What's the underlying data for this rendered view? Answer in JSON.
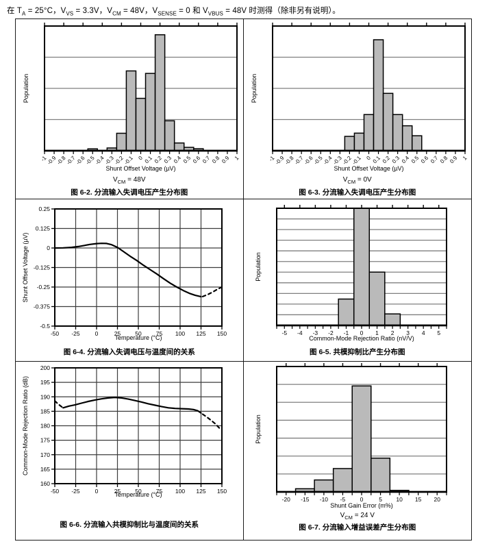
{
  "header": {
    "segments": [
      {
        "t": "在 T"
      },
      {
        "s": "A"
      },
      {
        "t": " = 25°C，V"
      },
      {
        "s": "VS"
      },
      {
        "t": " = 3.3V，V"
      },
      {
        "s": "CM"
      },
      {
        "t": " = 48V，V"
      },
      {
        "s": "SENSE"
      },
      {
        "t": " = 0 和 V"
      },
      {
        "s": "VBUS"
      },
      {
        "t": " = 48V 时测得（除非另有说明）。"
      }
    ]
  },
  "colors": {
    "bar_fill": "#bababa",
    "bar_stroke": "#000000",
    "hist_grid": "#7f7f7f",
    "line_grid": "#3c3c3c",
    "frame": "#000000"
  },
  "chart_data": [
    {
      "type": "bar",
      "subtype": "histogram",
      "caption": "图 6-2. 分流输入失调电压产生分布图",
      "subtitle": {
        "pre": "V",
        "sub": "CM",
        "post": " = 48V"
      },
      "xlabel": "Shunt Offset Voltage (µV)",
      "ylabel": "Population",
      "xlim": [
        -1,
        1
      ],
      "tick_labels": [
        "-1",
        "-0.9",
        "-0.8",
        "-0.7",
        "-0.6",
        "-0.5",
        "-0.4",
        "-0.3",
        "-0.2",
        "-0.1",
        "0",
        "0.1",
        "0.2",
        "0.3",
        "0.4",
        "0.5",
        "0.6",
        "0.7",
        "0.8",
        "0.9",
        "1"
      ],
      "rotate_labels": true,
      "minor_step": 0.1,
      "top_every": 2,
      "rows": 4,
      "bin_width": 0.1,
      "bars": [
        [
          -0.5,
          0.015
        ],
        [
          -0.3,
          0.022
        ],
        [
          -0.2,
          0.14
        ],
        [
          -0.1,
          0.64
        ],
        [
          0,
          0.42
        ],
        [
          0.1,
          0.62
        ],
        [
          0.2,
          0.93
        ],
        [
          0.3,
          0.24
        ],
        [
          0.4,
          0.062
        ],
        [
          0.5,
          0.027
        ],
        [
          0.6,
          0.016
        ]
      ]
    },
    {
      "type": "bar",
      "subtype": "histogram",
      "caption": "图 6-3. 分流输入失调电压产生分布图",
      "subtitle": {
        "pre": "V",
        "sub": "CM",
        "post": " = 0V"
      },
      "xlabel": "Shunt Offset Voltage (µV)",
      "ylabel": "Population",
      "xlim": [
        -1,
        1
      ],
      "tick_labels": [
        "-1",
        "-0.9",
        "-0.8",
        "-0.7",
        "-0.6",
        "-0.5",
        "-0.4",
        "-0.3",
        "-0.2",
        "-0.1",
        "0",
        "0.1",
        "0.2",
        "0.3",
        "0.4",
        "0.5",
        "0.6",
        "0.7",
        "0.8",
        "0.9",
        "1"
      ],
      "rotate_labels": true,
      "minor_step": 0.1,
      "top_every": 2,
      "rows": 4,
      "bin_width": 0.1,
      "bars": [
        [
          -0.2,
          0.115
        ],
        [
          -0.1,
          0.141
        ],
        [
          0,
          0.29
        ],
        [
          0.1,
          0.89
        ],
        [
          0.2,
          0.46
        ],
        [
          0.3,
          0.29
        ],
        [
          0.4,
          0.2
        ],
        [
          0.5,
          0.12
        ]
      ]
    },
    {
      "type": "line",
      "caption": "图 6-4. 分流输入失调电压与温度间的关系",
      "subtitle": null,
      "xlabel": "Temperature (°C)",
      "ylabel": "Shunt Offset Voltage (µV)",
      "xlim": [
        -50,
        150
      ],
      "ylim": [
        -0.5,
        0.25
      ],
      "xticks": [
        -50,
        -25,
        0,
        25,
        50,
        75,
        100,
        125,
        150
      ],
      "yticks": [
        0.25,
        0.125,
        0,
        -0.125,
        -0.25,
        -0.375,
        -0.5
      ],
      "ytick_labels": [
        "0.25",
        "0.125",
        "0",
        "-0.125",
        "-0.25",
        "-0.375",
        "-0.5"
      ],
      "segments": [
        {
          "style": "solid",
          "points": [
            [
              -50,
              0
            ],
            [
              -40,
              0.001
            ],
            [
              -30,
              0.004
            ],
            [
              -22,
              0.009
            ],
            [
              -15,
              0.016
            ],
            [
              -8,
              0.023
            ],
            [
              0,
              0.028
            ],
            [
              6,
              0.03
            ],
            [
              12,
              0.029
            ],
            [
              18,
              0.021
            ],
            [
              25,
              0.004
            ],
            [
              32,
              -0.022
            ],
            [
              40,
              -0.052
            ],
            [
              48,
              -0.08
            ],
            [
              56,
              -0.11
            ],
            [
              64,
              -0.138
            ],
            [
              72,
              -0.166
            ],
            [
              80,
              -0.196
            ],
            [
              88,
              -0.225
            ],
            [
              96,
              -0.25
            ],
            [
              104,
              -0.273
            ],
            [
              112,
              -0.292
            ],
            [
              118,
              -0.303
            ],
            [
              125,
              -0.312
            ]
          ]
        },
        {
          "style": "dashed",
          "points": [
            [
              127,
              -0.311
            ],
            [
              133,
              -0.298
            ],
            [
              139,
              -0.282
            ],
            [
              145,
              -0.263
            ],
            [
              150,
              -0.25
            ]
          ]
        }
      ]
    },
    {
      "type": "bar",
      "subtype": "histogram",
      "caption": "图 6-5. 共模抑制比产生分布图",
      "subtitle": null,
      "xlabel": "Common-Mode Rejection Ratio (nV/V)",
      "ylabel": "Population",
      "xlim": [
        -5.5,
        5.5
      ],
      "tick_labels": [
        "-5",
        "-4",
        "-3",
        "-2",
        "-1",
        "0",
        "1",
        "2",
        "3",
        "4",
        "5"
      ],
      "rotate_labels": false,
      "minor_step": 0.5,
      "top_every": 1,
      "rows": 11,
      "bin_width": 1,
      "bars": [
        [
          -1,
          0.225
        ],
        [
          0,
          1.0
        ],
        [
          1,
          0.455
        ],
        [
          2,
          0.098
        ]
      ]
    },
    {
      "type": "line",
      "caption": "图 6-6. 分流输入共模抑制比与温度间的关系",
      "subtitle": null,
      "xlabel": "Temperature (°C)",
      "ylabel": "Common-Mode Rejection Ratio (dB)",
      "xlim": [
        -50,
        150
      ],
      "ylim": [
        160,
        200
      ],
      "xticks": [
        -50,
        -25,
        0,
        25,
        50,
        75,
        100,
        125,
        150
      ],
      "yticks": [
        200,
        195,
        190,
        185,
        180,
        175,
        170,
        165,
        160
      ],
      "ytick_labels": [
        "200",
        "195",
        "190",
        "185",
        "180",
        "175",
        "170",
        "165",
        "160"
      ],
      "segments": [
        {
          "style": "dashed",
          "points": [
            [
              -50,
              188.6
            ],
            [
              -46,
              187.5
            ],
            [
              -42,
              186.6
            ],
            [
              -40,
              186.2
            ]
          ]
        },
        {
          "style": "solid",
          "points": [
            [
              -40,
              186.2
            ],
            [
              -33,
              186.8
            ],
            [
              -26,
              187.2
            ],
            [
              -18,
              187.8
            ],
            [
              -10,
              188.4
            ],
            [
              -2,
              188.9
            ],
            [
              6,
              189.3
            ],
            [
              14,
              189.6
            ],
            [
              22,
              189.8
            ],
            [
              30,
              189.6
            ],
            [
              38,
              189.2
            ],
            [
              46,
              188.7
            ],
            [
              54,
              188.2
            ],
            [
              62,
              187.6
            ],
            [
              70,
              187.1
            ],
            [
              78,
              186.6
            ],
            [
              86,
              186.2
            ],
            [
              94,
              186
            ],
            [
              102,
              185.9
            ],
            [
              110,
              185.8
            ],
            [
              116,
              185.6
            ],
            [
              121,
              185.2
            ],
            [
              125,
              184.4
            ]
          ]
        },
        {
          "style": "dashed",
          "points": [
            [
              127,
              184
            ],
            [
              132,
              183
            ],
            [
              137,
              181.9
            ],
            [
              142,
              180.7
            ],
            [
              147,
              179.2
            ]
          ]
        }
      ]
    },
    {
      "type": "bar",
      "subtype": "histogram",
      "caption": "图 6-7. 分流输入增益误差产生分布图",
      "subtitle": {
        "pre": "V",
        "sub": "CM",
        "post": " = 24 V"
      },
      "xlabel": "Shunt Gain Error (m%)",
      "ylabel": "Population",
      "xlim": [
        -22.5,
        22.5
      ],
      "tick_labels": [
        "-20",
        "-15",
        "-10",
        "-5",
        "0",
        "5",
        "10",
        "15",
        "20"
      ],
      "rotate_labels": false,
      "minor_step": 2.5,
      "top_every": 1,
      "rows": 7,
      "bin_width": 5,
      "bars": [
        [
          -15,
          0.025
        ],
        [
          -10,
          0.095
        ],
        [
          -5,
          0.186
        ],
        [
          0,
          0.845
        ],
        [
          5,
          0.269
        ],
        [
          10,
          0.012
        ]
      ]
    }
  ]
}
